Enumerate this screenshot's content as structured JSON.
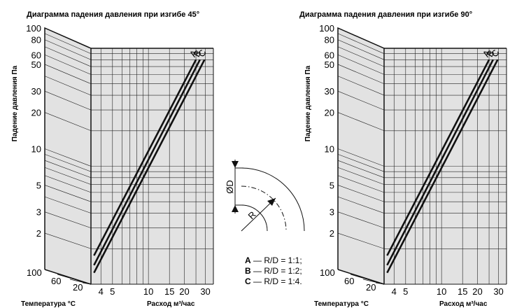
{
  "chart_data": [
    {
      "type": "line",
      "title": "Диаграмма падения давления при изгибе 45°",
      "ylabel": "Падение давления Па",
      "xlabel_left": "Температура °C",
      "xlabel_right": "Расход м³/час",
      "y_scale": "log",
      "ylim": [
        1,
        100
      ],
      "y_ticks": [
        "100",
        "80",
        "60",
        "50",
        "30",
        "20",
        "10",
        "5",
        "3",
        "2"
      ],
      "temp_ticks": [
        "100",
        "60",
        "20"
      ],
      "x_scale": "log",
      "xlim": [
        3.3,
        35
      ],
      "x_ticks": [
        "4",
        "5",
        "10",
        "15",
        "20",
        "30"
      ],
      "grid": true,
      "series": [
        {
          "name": "A",
          "points": [
            [
              3.5,
              1.75
            ],
            [
              25,
              80
            ]
          ]
        },
        {
          "name": "B",
          "points": [
            [
              3.5,
              1.45
            ],
            [
              27,
              80
            ]
          ]
        },
        {
          "name": "C",
          "points": [
            [
              3.5,
              1.25
            ],
            [
              29.5,
              80
            ]
          ]
        }
      ]
    },
    {
      "type": "line",
      "title": "Диаграмма падения давления при изгибе 90°",
      "ylabel": "Падение давления Па",
      "xlabel_left": "Температура °C",
      "xlabel_right": "Расход м³/час",
      "y_scale": "log",
      "ylim": [
        1,
        100
      ],
      "y_ticks": [
        "100",
        "80",
        "60",
        "50",
        "30",
        "20",
        "10",
        "5",
        "3",
        "2"
      ],
      "temp_ticks": [
        "100",
        "60",
        "20"
      ],
      "x_scale": "log",
      "xlim": [
        3.3,
        35
      ],
      "x_ticks": [
        "4",
        "5",
        "10",
        "15",
        "20",
        "30"
      ],
      "grid": true,
      "series": [
        {
          "name": "A",
          "points": [
            [
              3.5,
              1.75
            ],
            [
              25,
              80
            ]
          ]
        },
        {
          "name": "B",
          "points": [
            [
              3.5,
              1.45
            ],
            [
              27,
              80
            ]
          ]
        },
        {
          "name": "C",
          "points": [
            [
              3.5,
              1.25
            ],
            [
              29.5,
              80
            ]
          ]
        }
      ]
    }
  ],
  "bend": {
    "diameter_label": "ØD",
    "radius_label": "R"
  },
  "legend": [
    {
      "key": "A",
      "text": "— R/D = 1:1;"
    },
    {
      "key": "B",
      "text": "— R/D = 1:2;"
    },
    {
      "key": "C",
      "text": "— R/D = 1:4."
    }
  ]
}
